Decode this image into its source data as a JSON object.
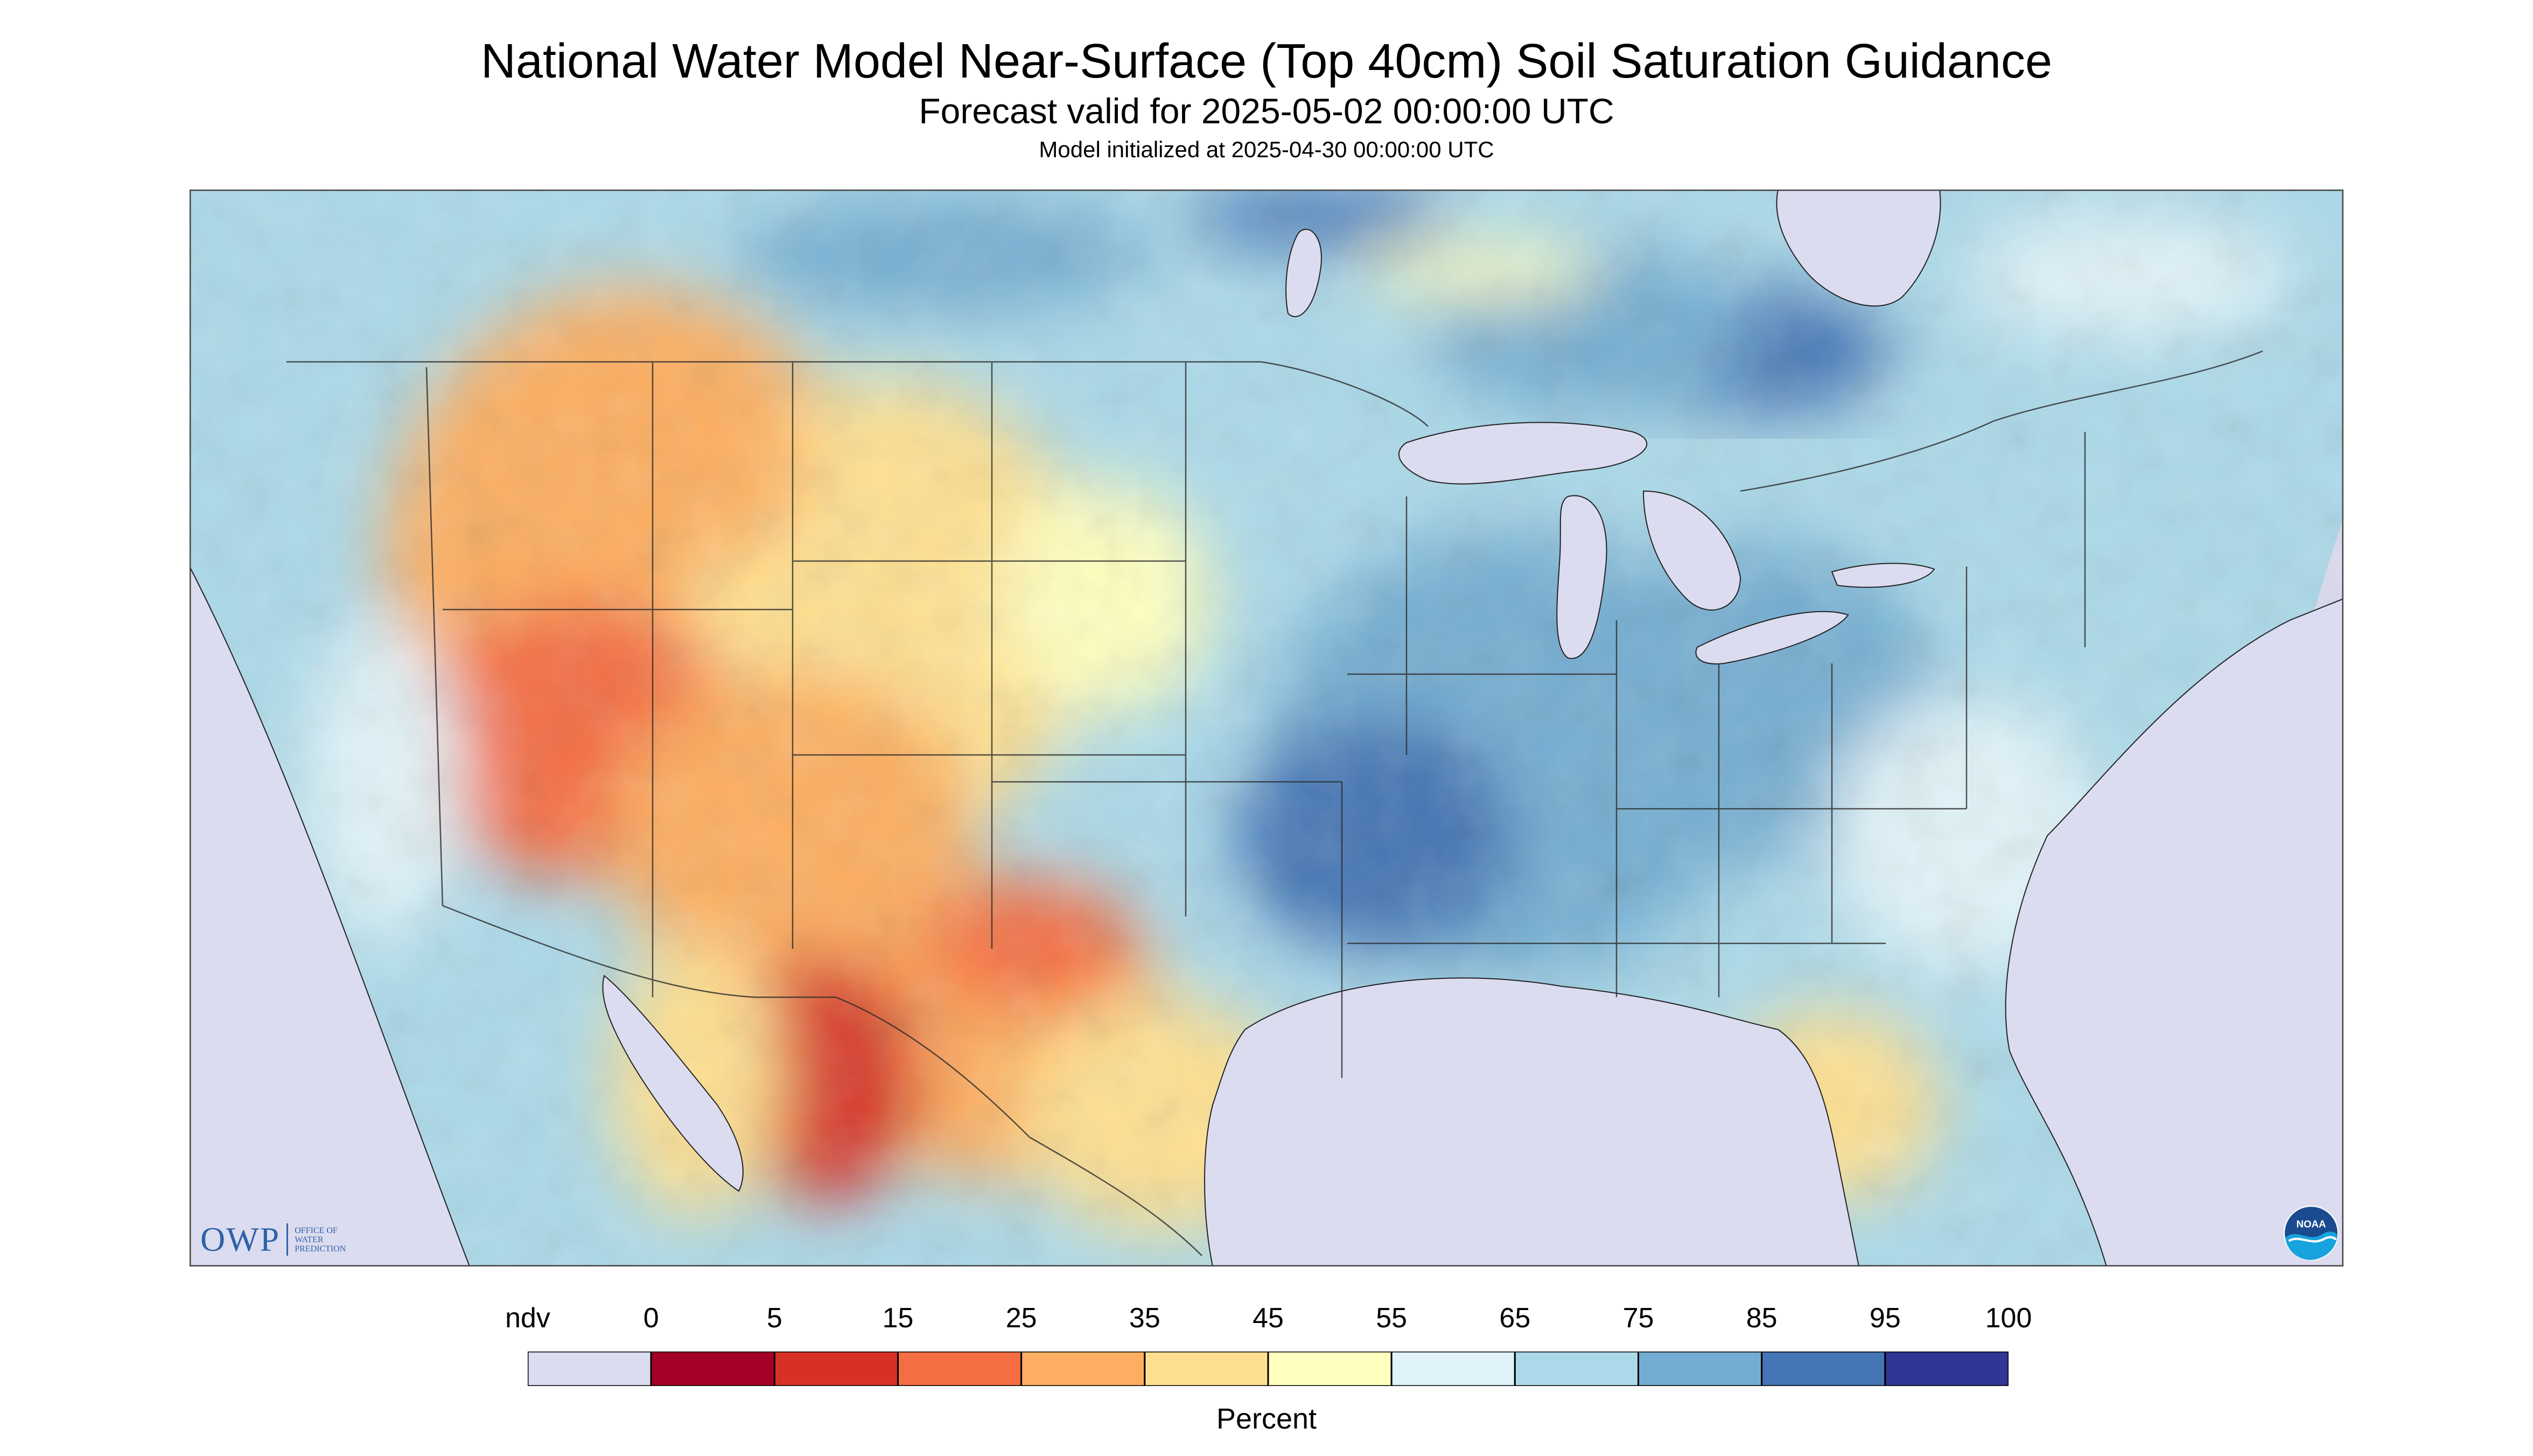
{
  "header": {
    "title": "National Water Model Near-Surface (Top 40cm) Soil Saturation Guidance",
    "subtitle": "Forecast valid for 2025-05-02 00:00:00 UTC",
    "init": "Model initialized at 2025-04-30 00:00:00 UTC"
  },
  "logos": {
    "owp_mark": "OWP",
    "owp_lines": [
      "OFFICE OF",
      "WATER",
      "PREDICTION"
    ],
    "noaa": "NOAA"
  },
  "legend": {
    "title": "Percent",
    "labels": [
      "ndv",
      "0",
      "5",
      "15",
      "25",
      "35",
      "45",
      "55",
      "65",
      "75",
      "85",
      "95",
      "100"
    ],
    "colors": [
      "#dcdcf0",
      "#a50026",
      "#d73027",
      "#f46d43",
      "#fdae61",
      "#fee090",
      "#ffffbf",
      "#e0f3f8",
      "#abd9e9",
      "#74add1",
      "#4575b4",
      "#313695"
    ]
  },
  "map": {
    "nodata_color": "#dcdcf0",
    "background_color": "#ffffff"
  }
}
